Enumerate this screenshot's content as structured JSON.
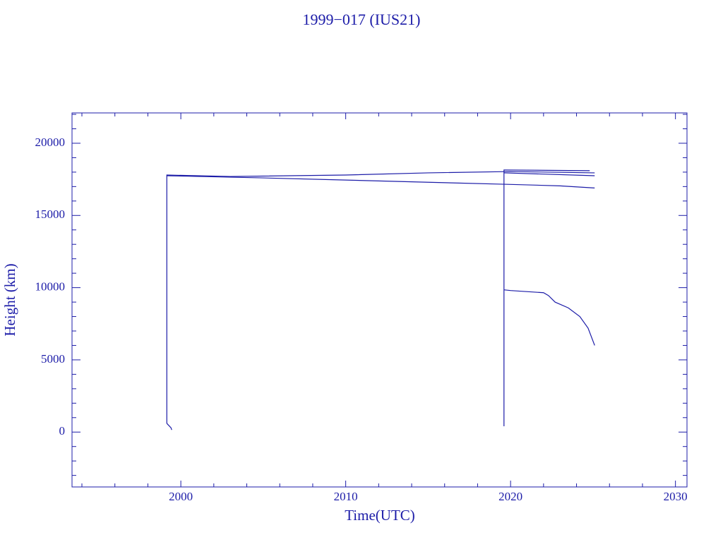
{
  "chart_data": {
    "type": "line",
    "title": "1999−017 (IUS21)",
    "x_label": "Time(UTC)",
    "y_label": "Height (km)",
    "color": "#1c1ca8",
    "xlim": [
      1993.4,
      2030.7
    ],
    "ylim": [
      -3800,
      22100
    ],
    "xticks": [
      2000,
      2010,
      2020,
      2030
    ],
    "yticks": [
      0,
      5000,
      10000,
      15000,
      20000
    ],
    "xminorticks": [
      1994,
      1996,
      1998,
      2002,
      2004,
      2006,
      2008,
      2012,
      2014,
      2016,
      2018,
      2022,
      2024,
      2026,
      2028
    ],
    "yminorticks": [
      -3000,
      -2000,
      -1000,
      1000,
      2000,
      3000,
      4000,
      6000,
      7000,
      8000,
      9000,
      11000,
      12000,
      13000,
      14000,
      16000,
      17000,
      18000,
      19000,
      21000,
      22000
    ],
    "series": [
      {
        "x": [
          1999.15,
          1999.15,
          2003,
          2010,
          2015,
          2020,
          2025.1
        ],
        "values": [
          600,
          17800,
          17700,
          17800,
          17950,
          18040,
          17950
        ]
      },
      {
        "x": [
          1999.15,
          2005,
          2010,
          2015,
          2020,
          2023,
          2025.1
        ],
        "values": [
          17750,
          17600,
          17450,
          17300,
          17150,
          17050,
          16900
        ]
      },
      {
        "x": [
          1999.15,
          1999.4,
          1999.45
        ],
        "values": [
          600,
          300,
          150
        ]
      },
      {
        "x": [
          2019.6,
          2019.6,
          2024.8
        ],
        "values": [
          400,
          18150,
          18100
        ]
      },
      {
        "x": [
          2019.6,
          2025.1
        ],
        "values": [
          17950,
          17750
        ]
      },
      {
        "x": [
          2019.6,
          2020,
          2022,
          2022.3,
          2022.7,
          2023.5,
          2024.2,
          2024.7,
          2025.1
        ],
        "values": [
          9850,
          9800,
          9650,
          9450,
          9000,
          8600,
          8000,
          7200,
          6000
        ]
      }
    ]
  }
}
